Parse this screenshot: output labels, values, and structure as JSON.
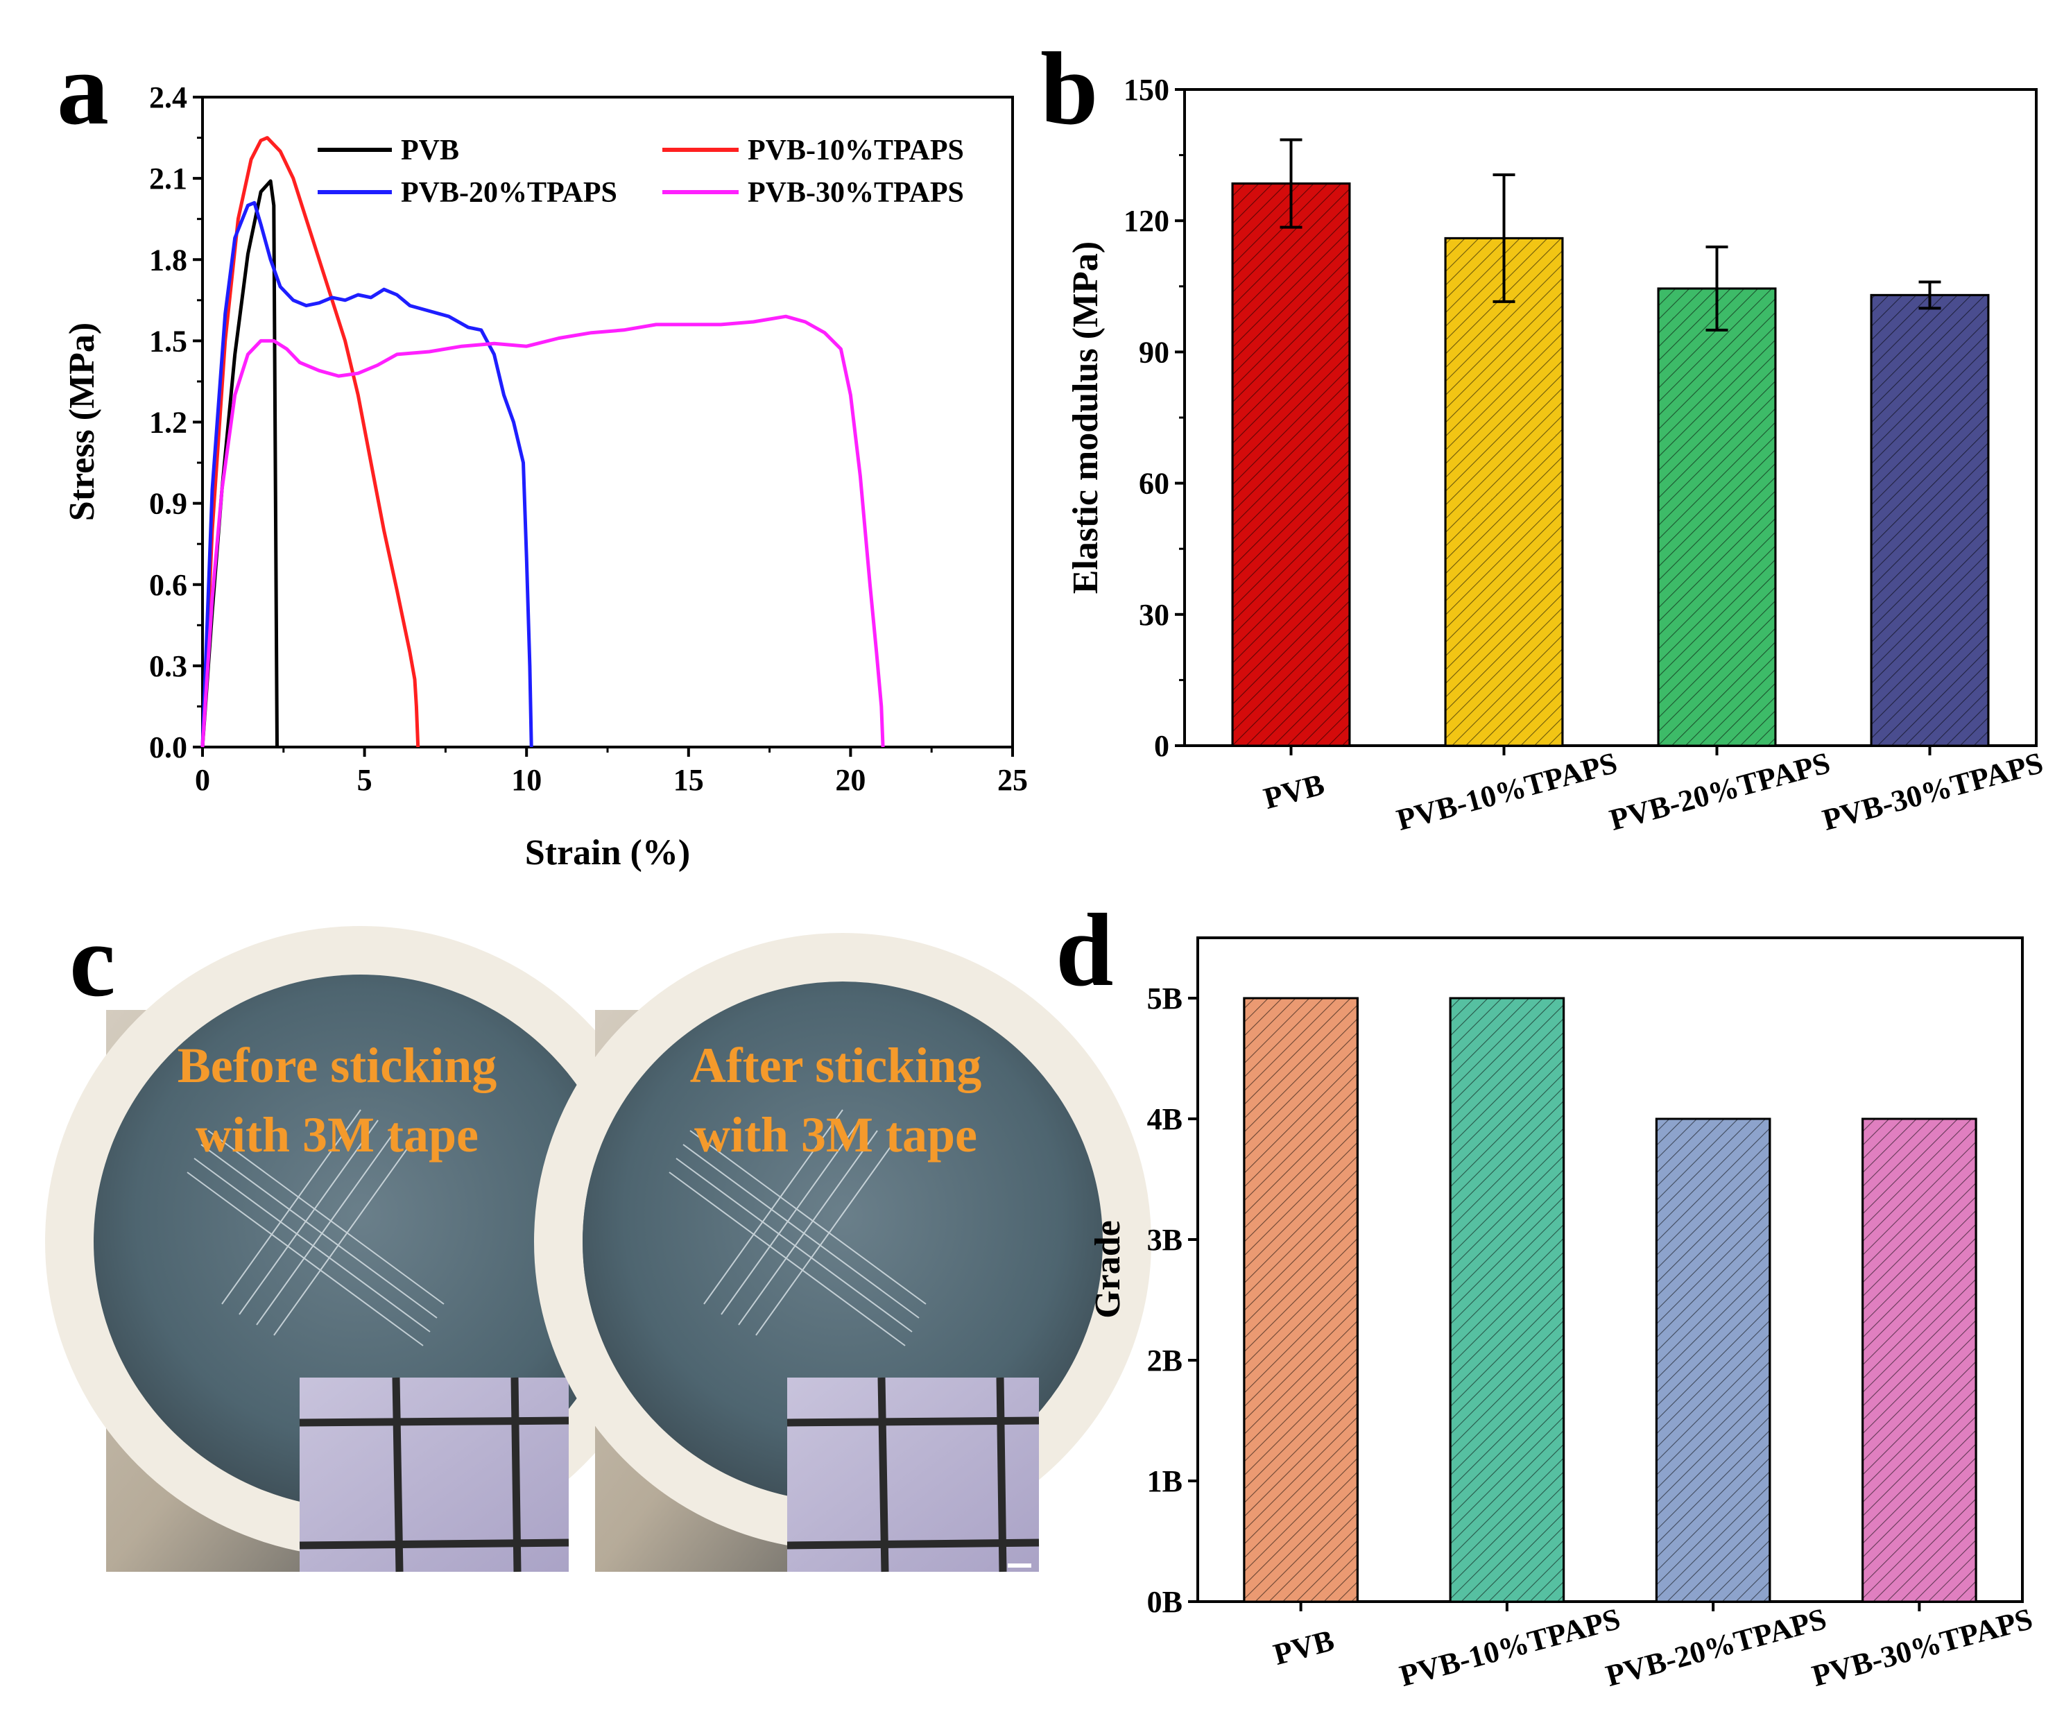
{
  "panels": {
    "a": "a",
    "b": "b",
    "c": "c",
    "d": "d"
  },
  "colors": {
    "PVB_line": "#000000",
    "PVB_10_line": "#ff2020",
    "PVB_20_line": "#1e1eff",
    "PVB_30_line": "#ff20ff",
    "bar_b_PVB": "#d40b0b",
    "bar_b_10": "#f2c514",
    "bar_b_20": "#3dbb68",
    "bar_b_30": "#4a4d8f",
    "bar_d_PVB": "#eb9a72",
    "bar_d_10": "#56c0a1",
    "bar_d_20": "#8da3cc",
    "bar_d_30": "#e07fc0",
    "photo_text": "#f59a2b"
  },
  "chart_data": [
    {
      "id": "a",
      "type": "line",
      "xlabel": "Strain (%)",
      "ylabel": "Stress (MPa)",
      "xlim": [
        0,
        25
      ],
      "ylim": [
        0,
        2.4
      ],
      "xticks": [
        "0",
        "5",
        "10",
        "15",
        "20",
        "25"
      ],
      "yticks": [
        "0.0",
        "0.3",
        "0.6",
        "0.9",
        "1.2",
        "1.5",
        "1.8",
        "2.1",
        "2.4"
      ],
      "series": [
        {
          "name": "PVB",
          "x": [
            0,
            0.3,
            0.6,
            1.0,
            1.4,
            1.8,
            2.1,
            2.2,
            2.25,
            2.3
          ],
          "y": [
            0,
            0.5,
            0.95,
            1.45,
            1.82,
            2.05,
            2.09,
            2.0,
            1.0,
            0.0
          ]
        },
        {
          "name": "PVB-10%TPAPS",
          "x": [
            0,
            0.3,
            0.7,
            1.1,
            1.5,
            1.8,
            2.0,
            2.4,
            2.8,
            3.2,
            3.6,
            4.0,
            4.4,
            4.8,
            5.2,
            5.6,
            6.0,
            6.4,
            6.55,
            6.6,
            6.65
          ],
          "y": [
            0,
            0.8,
            1.5,
            1.95,
            2.17,
            2.24,
            2.25,
            2.2,
            2.1,
            1.95,
            1.8,
            1.65,
            1.5,
            1.3,
            1.05,
            0.8,
            0.58,
            0.35,
            0.25,
            0.15,
            0.0
          ]
        },
        {
          "name": "PVB-20%TPAPS",
          "x": [
            0,
            0.3,
            0.7,
            1.0,
            1.4,
            1.6,
            1.8,
            2.1,
            2.4,
            2.8,
            3.2,
            3.6,
            4.0,
            4.4,
            4.8,
            5.2,
            5.6,
            6.0,
            6.4,
            7.0,
            7.6,
            8.2,
            8.6,
            9.0,
            9.3,
            9.6,
            9.9,
            10.0,
            10.1,
            10.15
          ],
          "y": [
            0,
            0.95,
            1.6,
            1.88,
            2.0,
            2.01,
            1.93,
            1.8,
            1.7,
            1.65,
            1.63,
            1.64,
            1.66,
            1.65,
            1.67,
            1.66,
            1.69,
            1.67,
            1.63,
            1.61,
            1.59,
            1.55,
            1.54,
            1.45,
            1.3,
            1.2,
            1.05,
            0.7,
            0.3,
            0.0
          ]
        },
        {
          "name": "PVB-30%TPAPS",
          "x": [
            0,
            0.3,
            0.6,
            1.0,
            1.4,
            1.8,
            2.2,
            2.6,
            3.0,
            3.6,
            4.2,
            4.8,
            5.4,
            6.0,
            7.0,
            8.0,
            9.0,
            10.0,
            11.0,
            12.0,
            13.0,
            14.0,
            15.0,
            16.0,
            17.0,
            18.0,
            18.6,
            19.2,
            19.7,
            20.0,
            20.3,
            20.6,
            20.8,
            20.95,
            21.0
          ],
          "y": [
            0,
            0.55,
            0.95,
            1.3,
            1.45,
            1.5,
            1.5,
            1.47,
            1.42,
            1.39,
            1.37,
            1.38,
            1.41,
            1.45,
            1.46,
            1.48,
            1.49,
            1.48,
            1.51,
            1.53,
            1.54,
            1.56,
            1.56,
            1.56,
            1.57,
            1.59,
            1.57,
            1.53,
            1.47,
            1.3,
            1.0,
            0.6,
            0.35,
            0.15,
            0.0
          ]
        }
      ]
    },
    {
      "id": "b",
      "type": "bar",
      "xlabel": "",
      "ylabel": "Elastic modulus (MPa)",
      "ylim": [
        0,
        150
      ],
      "yticks": [
        "0",
        "30",
        "60",
        "90",
        "120",
        "150"
      ],
      "categories": [
        "PVB",
        "PVB-10%TPAPS",
        "PVB-20%TPAPS",
        "PVB-30%TPAPS"
      ],
      "values": [
        128.5,
        116,
        104.5,
        103
      ],
      "errors": [
        10,
        14.5,
        9.5,
        3
      ]
    },
    {
      "id": "d",
      "type": "bar",
      "xlabel": "",
      "ylabel": "Grade",
      "ylim": [
        0,
        5.5
      ],
      "yticks": [
        "0B",
        "1B",
        "2B",
        "3B",
        "4B",
        "5B"
      ],
      "categories": [
        "PVB",
        "PVB-10%TPAPS",
        "PVB-20%TPAPS",
        "PVB-30%TPAPS"
      ],
      "values": [
        5,
        5,
        4,
        4
      ]
    }
  ],
  "photos": {
    "left_caption_line1": "Before sticking",
    "left_caption_line2": "with 3M tape",
    "right_caption_line1": "After sticking",
    "right_caption_line2": "with 3M tape"
  }
}
